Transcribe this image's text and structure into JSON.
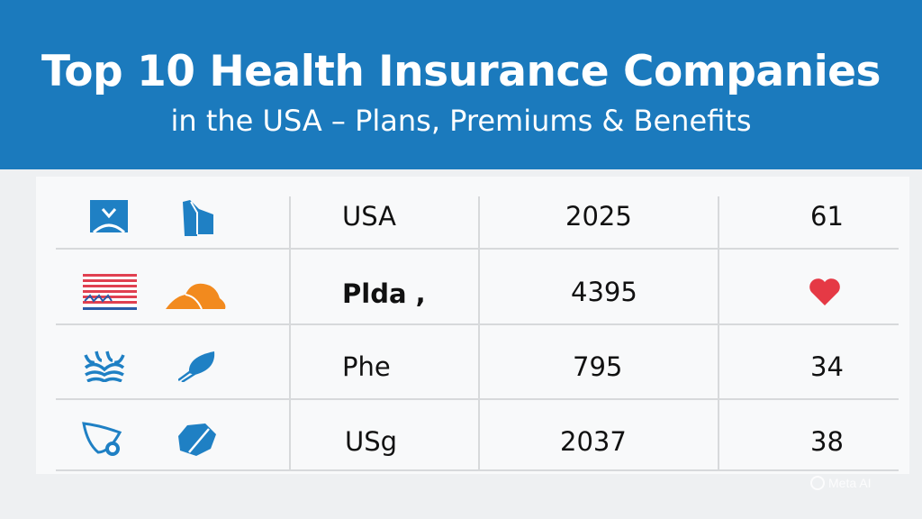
{
  "header": {
    "title": "Top 10 Health Insurance Companies",
    "subtitle": "in the USA – Plans, Premiums & Benefits",
    "background_color": "#1b7abd"
  },
  "table": {
    "rows": [
      {
        "icon1": "blue-square-logo-icon",
        "icon2": "blue-building-icon",
        "label": "USA",
        "number": "2025",
        "value": "61"
      },
      {
        "icon1": "us-flag-icon",
        "icon2": "orange-mountain-icon",
        "label": "Plda ,",
        "number": "4395",
        "value_icon": "heart-icon"
      },
      {
        "icon1": "blue-wave-icon",
        "icon2": "blue-leaf-icon",
        "label": "Phe",
        "number": "795",
        "value": "34"
      },
      {
        "icon1": "blue-shield-icon",
        "icon2": "blue-hexagon-icon",
        "label": "USg",
        "number": "2037",
        "value": "38"
      }
    ]
  },
  "watermark": "Meta AI",
  "colors": {
    "accent_blue": "#1f80c4",
    "orange": "#f28a1e",
    "heart_red": "#e53945"
  }
}
